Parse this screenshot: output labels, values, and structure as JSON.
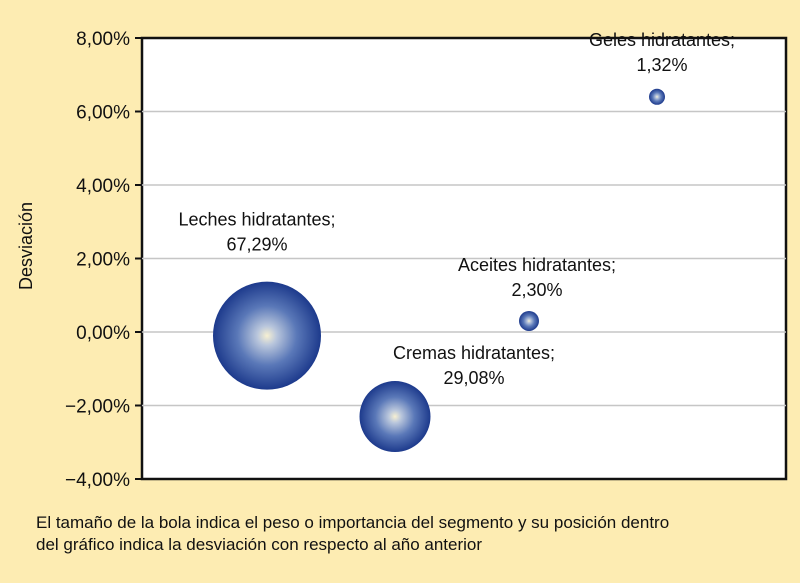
{
  "chart_data": {
    "type": "scatter",
    "variant": "bubble",
    "ylabel": "Desviación",
    "ylim": [
      -4,
      8
    ],
    "yticks": [
      "8,00%",
      "6,00%",
      "4,00%",
      "2,00%",
      "0,00%",
      "−2,00%",
      "−4,00%"
    ],
    "ytick_values": [
      8,
      6,
      4,
      2,
      0,
      -2,
      -4
    ],
    "grid": true,
    "series": [
      {
        "points": [
          {
            "label": "Leches hidratantes;",
            "size_label": "67,29%",
            "size": 67.29,
            "y": -0.1
          },
          {
            "label": "Cremas hidratantes;",
            "size_label": "29,08%",
            "size": 29.08,
            "y": -2.3
          },
          {
            "label": "Aceites hidratantes;",
            "size_label": "2,30%",
            "size": 2.3,
            "y": 0.3
          },
          {
            "label": "Geles hidratantes;",
            "size_label": "1,32%",
            "size": 1.32,
            "y": 6.4
          }
        ]
      }
    ]
  },
  "footnote": {
    "line1": "El tamaño de la bola indica el peso o importancia del segmento y su posición dentro",
    "line2": "del gráfico indica la desviación con respecto al año anterior"
  },
  "colors": {
    "background": "#fdecb2",
    "plot_area": "#ffffff",
    "gridline": "#c6c6c6",
    "bubble_dark": "#1d3a8c",
    "bubble_light": "#f4eccd"
  }
}
